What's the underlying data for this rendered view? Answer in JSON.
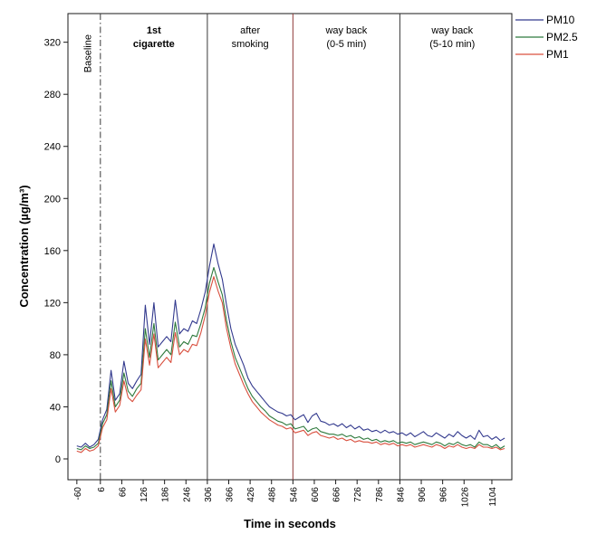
{
  "chart_data": {
    "type": "line",
    "title": "",
    "xlabel": "Time in seconds",
    "ylabel": "Concentration (µg/m³)",
    "xlim": [
      -85,
      1160
    ],
    "ylim": [
      -16,
      342
    ],
    "grid": false,
    "legend_position": "top-right",
    "y_ticks": [
      0,
      40,
      80,
      120,
      160,
      200,
      240,
      280,
      320
    ],
    "x_ticks": [
      -60,
      6,
      66,
      126,
      186,
      246,
      306,
      366,
      426,
      486,
      546,
      606,
      666,
      726,
      786,
      846,
      906,
      966,
      1026,
      1104
    ],
    "x": [
      -60,
      -48,
      -36,
      -24,
      -12,
      0,
      12,
      24,
      36,
      48,
      60,
      72,
      84,
      96,
      108,
      120,
      132,
      144,
      156,
      168,
      180,
      192,
      204,
      216,
      228,
      240,
      252,
      264,
      276,
      288,
      300,
      312,
      324,
      336,
      348,
      360,
      372,
      384,
      396,
      408,
      420,
      432,
      444,
      456,
      468,
      480,
      492,
      504,
      516,
      528,
      540,
      552,
      564,
      576,
      588,
      600,
      612,
      624,
      636,
      648,
      660,
      672,
      684,
      696,
      708,
      720,
      732,
      744,
      756,
      768,
      780,
      792,
      804,
      816,
      828,
      840,
      852,
      864,
      876,
      888,
      900,
      912,
      924,
      936,
      948,
      960,
      972,
      984,
      996,
      1008,
      1020,
      1032,
      1044,
      1056,
      1068,
      1080,
      1092,
      1104,
      1116,
      1128,
      1140
    ],
    "series": [
      {
        "name": "PM10",
        "color": "#333a8e",
        "values": [
          10,
          9,
          12,
          9,
          11,
          15,
          30,
          38,
          68,
          45,
          50,
          75,
          58,
          54,
          60,
          65,
          118,
          88,
          120,
          86,
          90,
          94,
          90,
          122,
          96,
          100,
          98,
          106,
          104,
          115,
          128,
          148,
          165,
          150,
          138,
          118,
          100,
          88,
          80,
          72,
          62,
          56,
          52,
          48,
          44,
          40,
          38,
          36,
          35,
          33,
          34,
          30,
          32,
          34,
          28,
          33,
          35,
          29,
          28,
          26,
          27,
          25,
          27,
          24,
          26,
          23,
          25,
          22,
          23,
          21,
          22,
          20,
          22,
          20,
          21,
          19,
          20,
          18,
          20,
          17,
          19,
          21,
          18,
          17,
          20,
          18,
          16,
          19,
          17,
          21,
          18,
          16,
          18,
          15,
          22,
          17,
          18,
          15,
          17,
          14,
          16
        ]
      },
      {
        "name": "PM2.5",
        "color": "#2f7a3d",
        "values": [
          8,
          7,
          10,
          8,
          9,
          12,
          27,
          34,
          60,
          40,
          45,
          66,
          52,
          48,
          54,
          58,
          100,
          78,
          104,
          76,
          80,
          84,
          80,
          105,
          86,
          90,
          88,
          95,
          94,
          104,
          116,
          135,
          147,
          136,
          126,
          106,
          90,
          78,
          70,
          62,
          54,
          48,
          44,
          40,
          37,
          33,
          31,
          29,
          28,
          26,
          27,
          23,
          24,
          25,
          21,
          23,
          24,
          21,
          20,
          19,
          19,
          18,
          19,
          17,
          18,
          16,
          17,
          15,
          16,
          14,
          15,
          13,
          14,
          13,
          14,
          12,
          13,
          12,
          13,
          11,
          12,
          13,
          12,
          11,
          13,
          12,
          10,
          12,
          11,
          13,
          11,
          10,
          11,
          9,
          13,
          11,
          11,
          9,
          11,
          8,
          10
        ]
      },
      {
        "name": "PM1",
        "color": "#d9503f",
        "values": [
          6,
          5,
          8,
          6,
          7,
          10,
          24,
          30,
          54,
          36,
          41,
          60,
          47,
          44,
          49,
          53,
          92,
          72,
          96,
          70,
          74,
          78,
          74,
          97,
          80,
          84,
          82,
          88,
          87,
          97,
          110,
          128,
          140,
          129,
          120,
          100,
          85,
          73,
          65,
          57,
          50,
          44,
          40,
          36,
          33,
          30,
          28,
          26,
          25,
          23,
          24,
          20,
          21,
          22,
          18,
          20,
          21,
          18,
          17,
          16,
          17,
          15,
          16,
          14,
          15,
          13,
          14,
          13,
          13,
          12,
          13,
          11,
          12,
          11,
          12,
          10,
          11,
          10,
          11,
          9,
          10,
          11,
          10,
          9,
          11,
          10,
          8,
          10,
          9,
          11,
          9,
          8,
          9,
          8,
          11,
          9,
          9,
          8,
          9,
          7,
          8
        ]
      }
    ],
    "dividers": [
      {
        "t": 6,
        "style": "dashdot",
        "color": "#3a3a3a"
      },
      {
        "t": 306,
        "style": "solid",
        "color": "#3a3a3a"
      },
      {
        "t": 546,
        "style": "solid",
        "color": "#8e3a38"
      },
      {
        "t": 846,
        "style": "solid",
        "color": "#3a3a3a"
      }
    ],
    "regions": [
      {
        "label": "Baseline",
        "vertical": true,
        "bold": false,
        "t": -30
      },
      {
        "lines": [
          "1st",
          "cigarette"
        ],
        "vertical": false,
        "bold": true,
        "t": 156
      },
      {
        "lines": [
          "after",
          "smoking"
        ],
        "vertical": false,
        "bold": false,
        "t": 426
      },
      {
        "lines": [
          "way back",
          "(0-5 min)"
        ],
        "vertical": false,
        "bold": false,
        "t": 696
      },
      {
        "lines": [
          "way back",
          "(5-10 min)"
        ],
        "vertical": false,
        "bold": false,
        "t": 993
      }
    ]
  }
}
